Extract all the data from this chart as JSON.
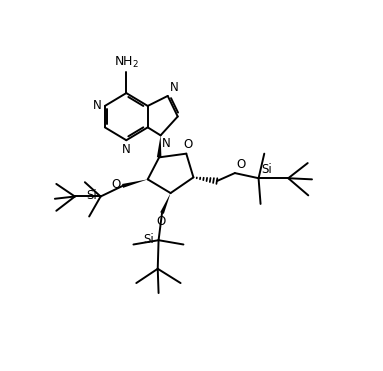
{
  "background_color": "#ffffff",
  "line_color": "#000000",
  "line_width": 1.4,
  "font_size": 8.5,
  "figsize": [
    3.83,
    3.71
  ],
  "dpi": 100,
  "xlim": [
    0,
    10
  ],
  "ylim": [
    0,
    10
  ]
}
